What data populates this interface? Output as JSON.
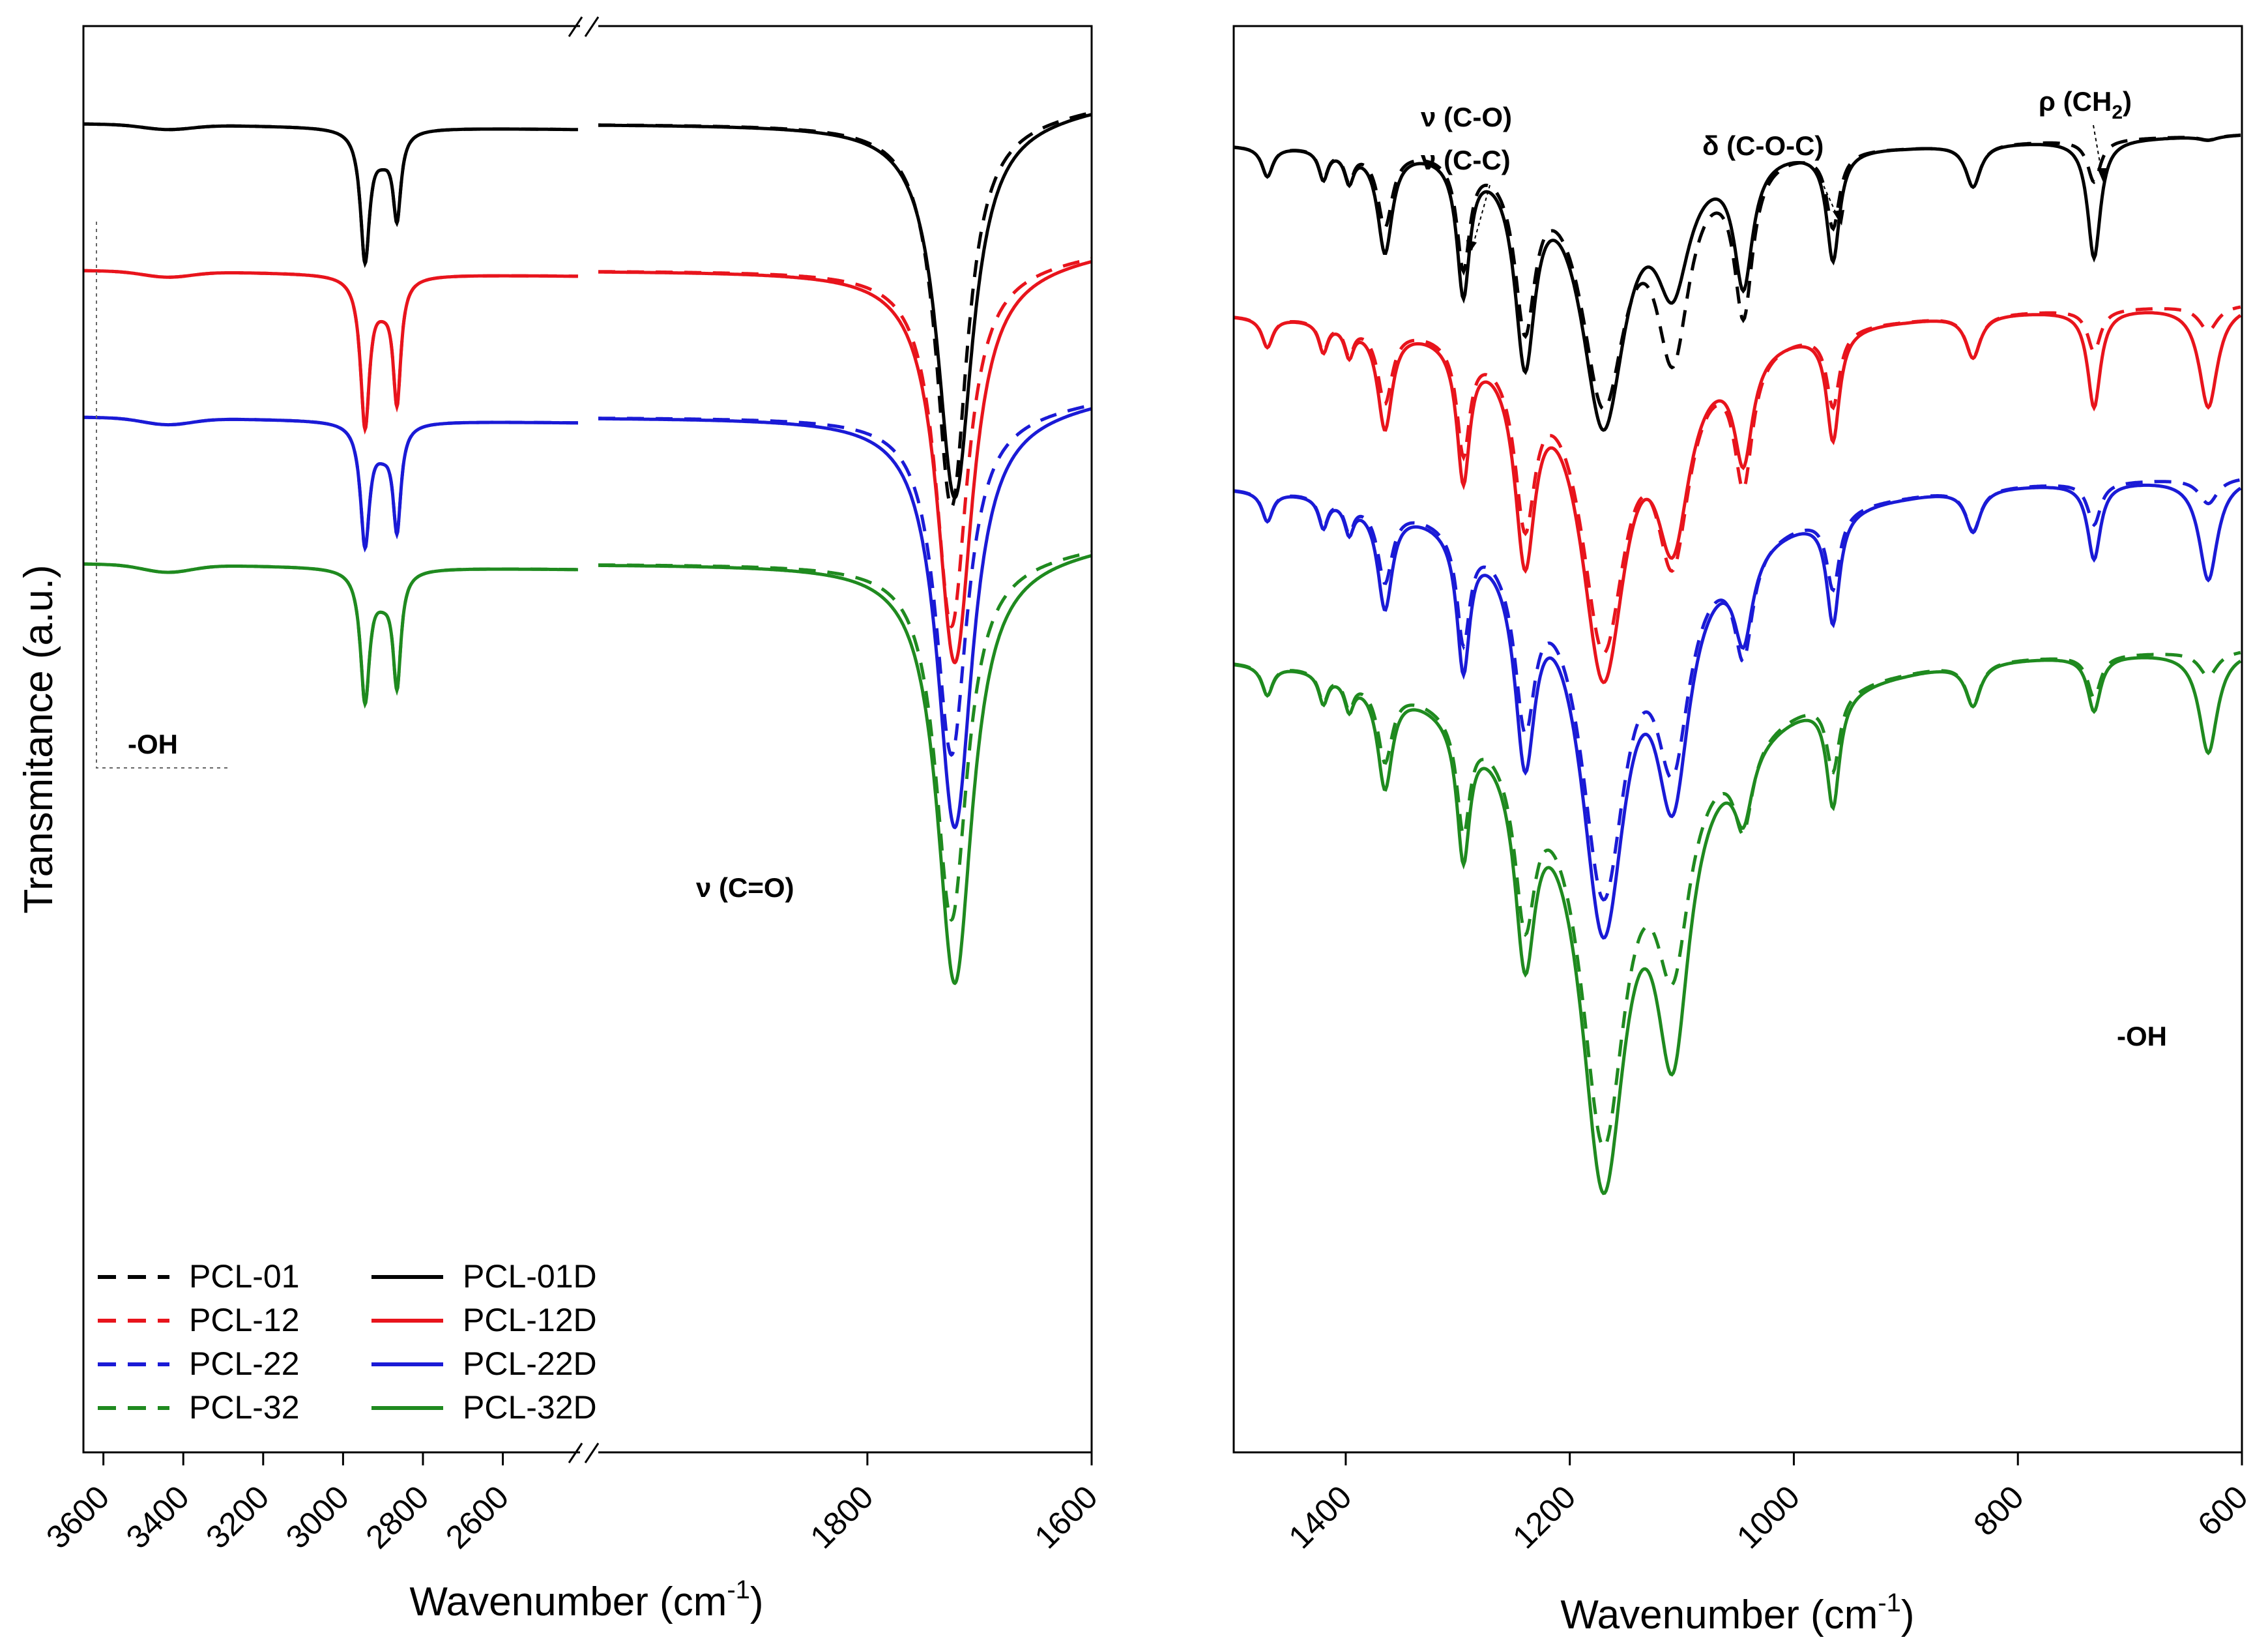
{
  "chart_data": [
    {
      "type": "line",
      "panel": "left",
      "ylabel": "Transmitance (a.u.)",
      "xlabel": "Wavenumber (cm",
      "xlabel_sup": "-1",
      "xlabel_end": ")",
      "x_reversed": true,
      "broken_axis": true,
      "break_symbol": "//",
      "segments": [
        {
          "xlim": [
            3650,
            2410
          ],
          "ticks": [
            3600,
            3400,
            3200,
            3000,
            2800,
            2600
          ]
        },
        {
          "xlim": [
            2040,
            1600
          ],
          "ticks": [
            1800,
            1600
          ]
        }
      ],
      "tick_labels": [
        "3600",
        "3400",
        "3200",
        "3000",
        "2800",
        "2600",
        "1800",
        "1600"
      ],
      "legend_position": "bottom-left",
      "legend": [
        {
          "name": "PCL-01",
          "color": "#000000",
          "style": "dashed"
        },
        {
          "name": "PCL-12",
          "color": "#e8141c",
          "style": "dashed"
        },
        {
          "name": "PCL-22",
          "color": "#1a1ad6",
          "style": "dashed"
        },
        {
          "name": "PCL-32",
          "color": "#1f8a1f",
          "style": "dashed"
        },
        {
          "name": "PCL-01D",
          "color": "#000000",
          "style": "solid"
        },
        {
          "name": "PCL-12D",
          "color": "#e8141c",
          "style": "solid"
        },
        {
          "name": "PCL-22D",
          "color": "#1a1ad6",
          "style": "solid"
        },
        {
          "name": "PCL-32D",
          "color": "#1f8a1f",
          "style": "solid"
        }
      ],
      "annotations": [
        {
          "text": "-OH",
          "x": 3450
        },
        {
          "text": "ν (C=O)",
          "x": 1790
        }
      ],
      "offsets": [
        0,
        0.9,
        1.8,
        2.7
      ],
      "peak_depths": {
        "OH": [
          0.05,
          0.06,
          0.07,
          0.08
        ],
        "CH_asym": [
          1.4,
          1.6,
          1.3,
          1.4
        ],
        "CH_sym": [
          0.9,
          1.3,
          1.1,
          1.2
        ],
        "CO_dashed": [
          4.2,
          3.9,
          3.7,
          3.9
        ],
        "CO_solid": [
          4.1,
          4.3,
          4.5,
          4.6
        ]
      }
    },
    {
      "type": "line",
      "panel": "right",
      "xlabel": "Wavenumber (cm",
      "xlabel_sup": "-1",
      "xlabel_end": ")",
      "xlim": [
        1500,
        600
      ],
      "x_reversed": true,
      "ticks": [
        1400,
        1200,
        1000,
        800,
        600
      ],
      "tick_labels": [
        "1400",
        "1200",
        "1000",
        "800",
        "600"
      ],
      "annotations": [
        {
          "text": "ν (C-O)",
          "x": 1290
        },
        {
          "text": "ν (C-C)",
          "x": 1290
        },
        {
          "text": "δ (C-O-C)",
          "x": 960
        },
        {
          "text": "ρ (CH",
          "sub": "2",
          "end": ")",
          "x": 735
        },
        {
          "text": "-OH",
          "x": 650
        }
      ],
      "offsets": [
        0,
        0.95,
        1.9,
        2.85
      ],
      "peaks_cm1": [
        1470,
        1420,
        1397,
        1365,
        1295,
        1240,
        1170,
        1108,
        1045,
        965,
        840,
        732,
        630
      ]
    }
  ]
}
